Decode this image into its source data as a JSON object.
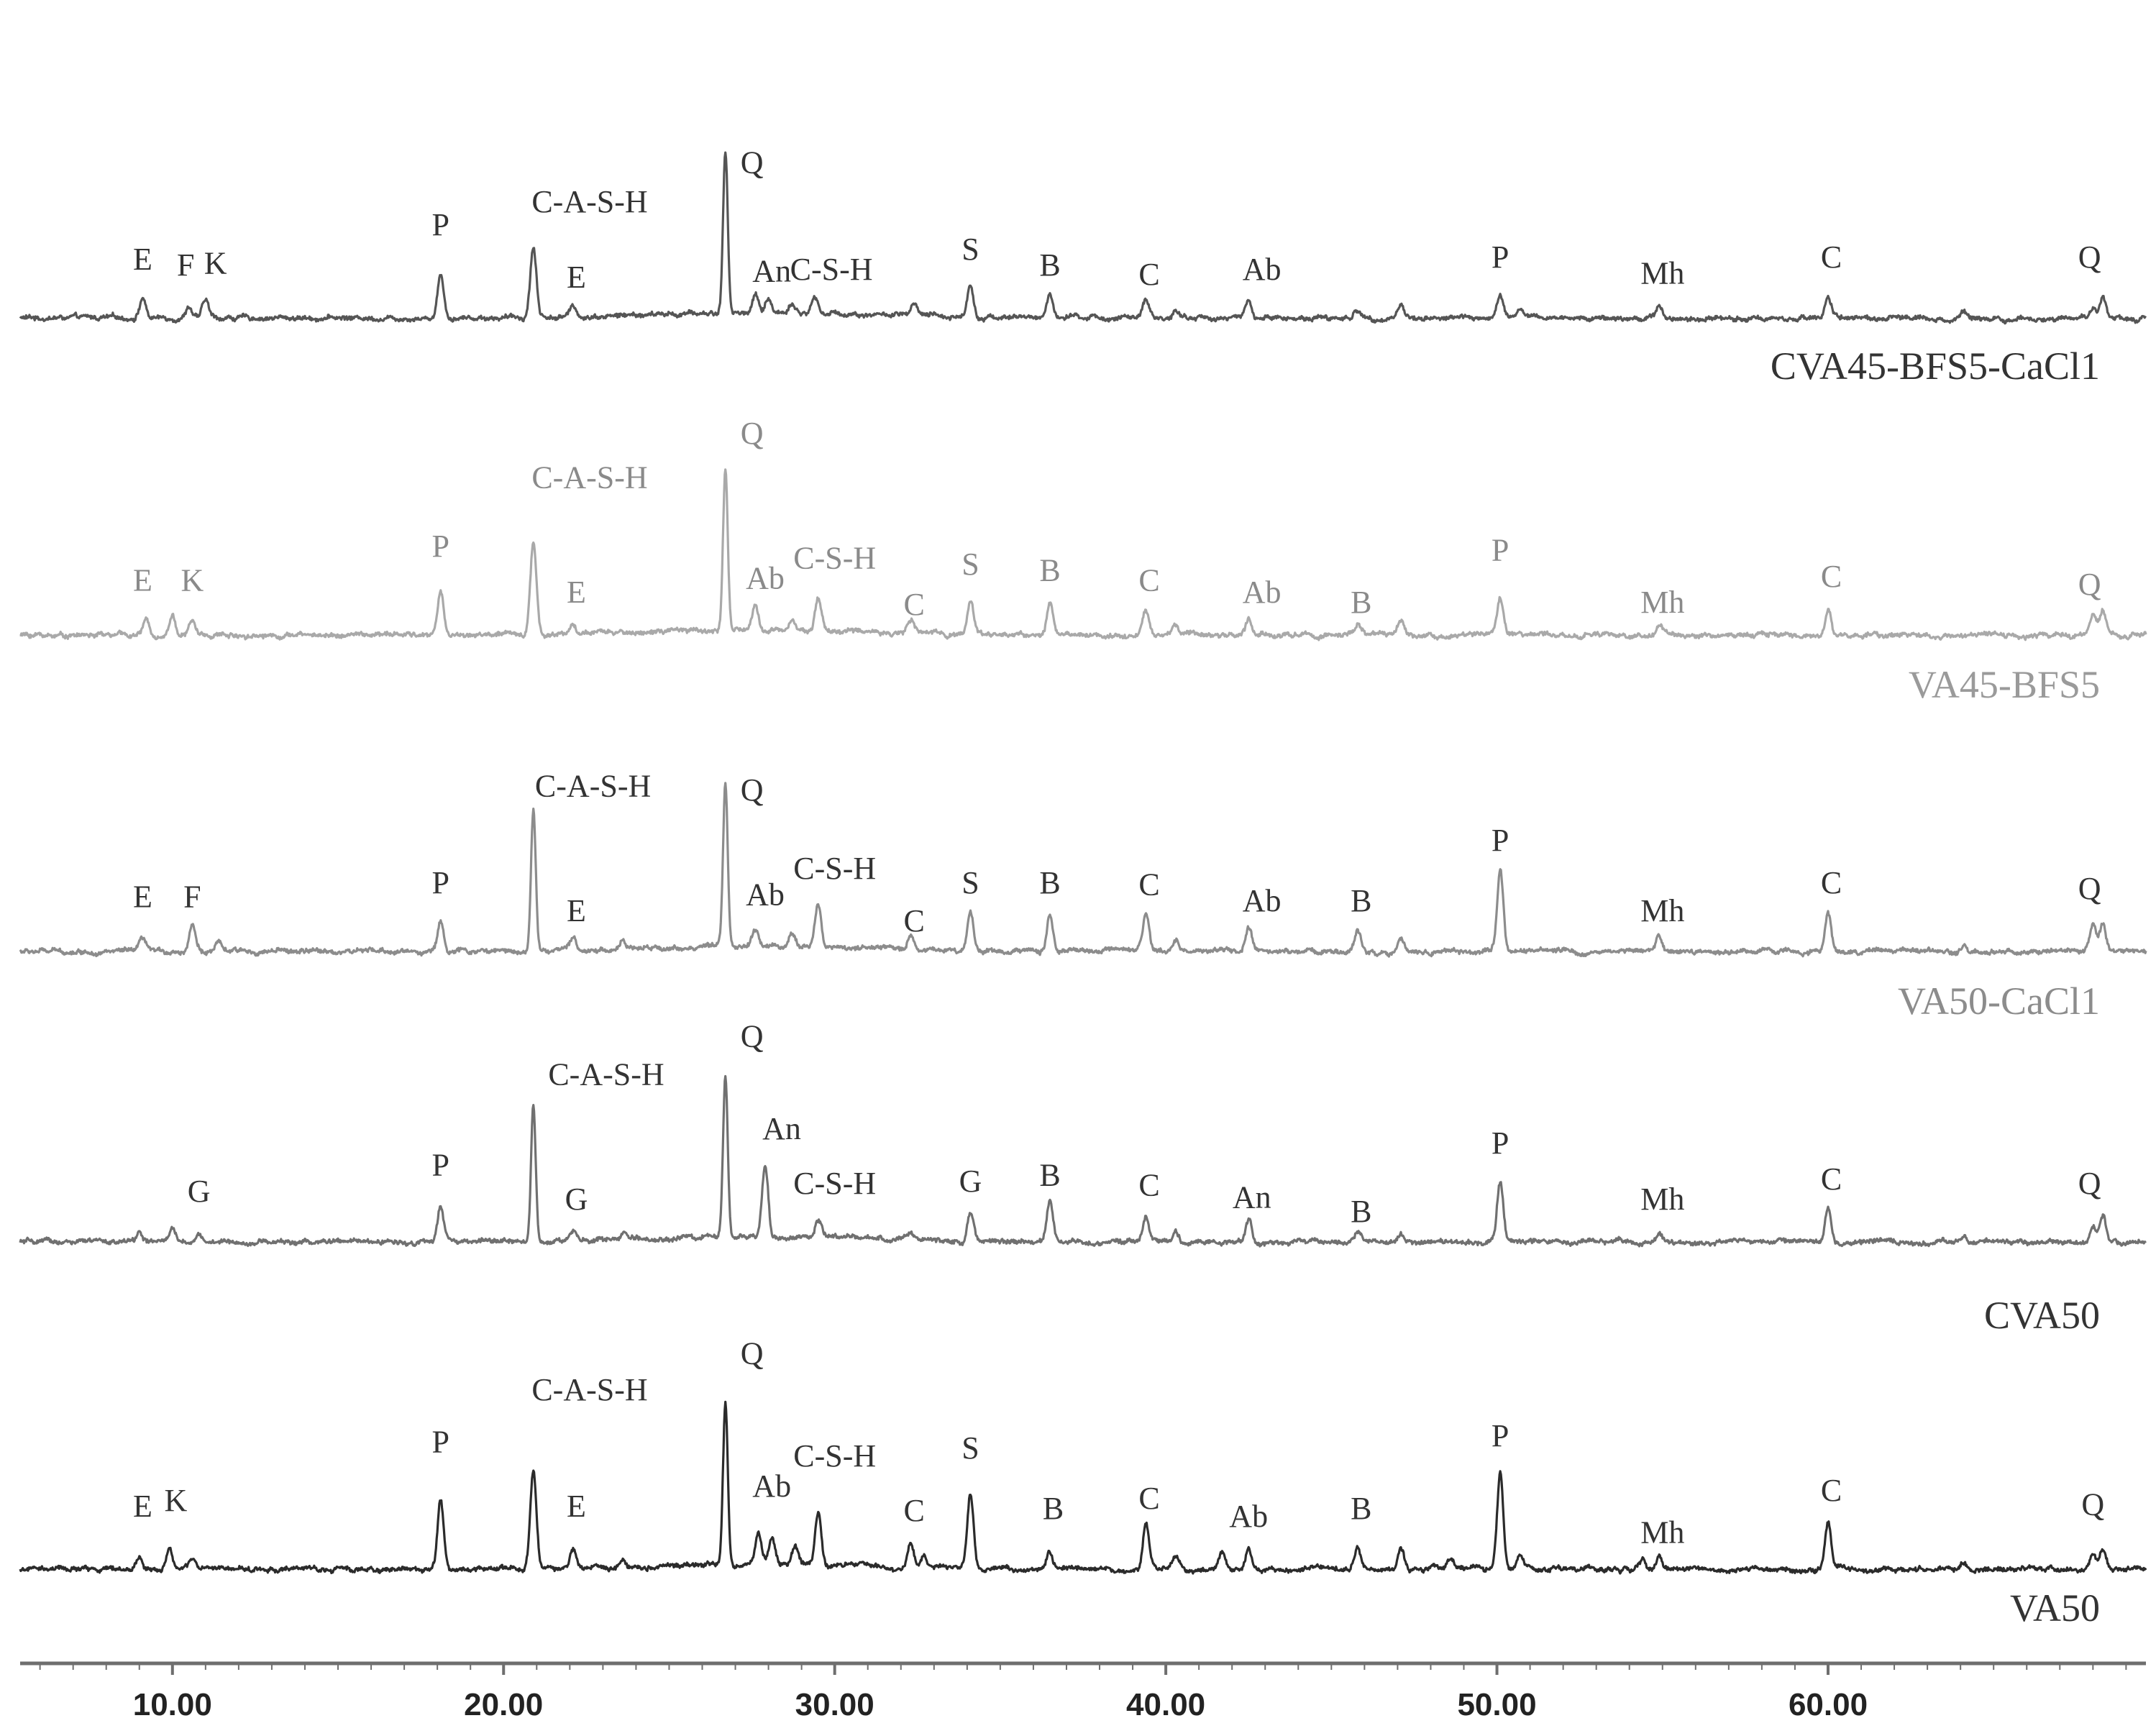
{
  "chart_data": {
    "type": "line",
    "title": "",
    "xlabel": "",
    "ylabel": "",
    "xlim": [
      5.4,
      69.6
    ],
    "xticks": [
      "10.00",
      "20.00",
      "30.00",
      "40.00",
      "50.00",
      "60.00"
    ],
    "xtick_values": [
      10,
      20,
      30,
      40,
      50,
      60
    ],
    "grid": false,
    "series": [
      {
        "name": "CVA45-BFS5-CaCl1",
        "color": "#555555",
        "peaks": [
          {
            "x": 9.1,
            "h": 0.2
          },
          {
            "x": 10.5,
            "h": 0.12
          },
          {
            "x": 11.0,
            "h": 0.18
          },
          {
            "x": 18.1,
            "h": 0.44
          },
          {
            "x": 20.9,
            "h": 0.7
          },
          {
            "x": 22.1,
            "h": 0.1
          },
          {
            "x": 26.7,
            "h": 1.6
          },
          {
            "x": 27.6,
            "h": 0.18
          },
          {
            "x": 28.0,
            "h": 0.14
          },
          {
            "x": 28.7,
            "h": 0.1
          },
          {
            "x": 29.4,
            "h": 0.16
          },
          {
            "x": 32.4,
            "h": 0.1
          },
          {
            "x": 34.1,
            "h": 0.32
          },
          {
            "x": 36.5,
            "h": 0.24
          },
          {
            "x": 39.4,
            "h": 0.16
          },
          {
            "x": 40.3,
            "h": 0.08
          },
          {
            "x": 42.5,
            "h": 0.16
          },
          {
            "x": 45.8,
            "h": 0.07
          },
          {
            "x": 47.1,
            "h": 0.12
          },
          {
            "x": 50.1,
            "h": 0.22
          },
          {
            "x": 50.7,
            "h": 0.1
          },
          {
            "x": 54.9,
            "h": 0.12
          },
          {
            "x": 60.0,
            "h": 0.18
          },
          {
            "x": 64.1,
            "h": 0.06
          },
          {
            "x": 68.0,
            "h": 0.12
          },
          {
            "x": 68.3,
            "h": 0.2
          }
        ],
        "labels": [
          {
            "text": "E",
            "x": 9.1,
            "dy": 0.48
          },
          {
            "text": "F",
            "x": 10.4,
            "dy": 0.42
          },
          {
            "text": "K",
            "x": 11.3,
            "dy": 0.44
          },
          {
            "text": "P",
            "x": 18.1,
            "dy": 0.82
          },
          {
            "text": "C-A-S-H",
            "x": 22.6,
            "dy": 1.05
          },
          {
            "text": "E",
            "x": 22.2,
            "dy": 0.3
          },
          {
            "text": "Q",
            "x": 27.5,
            "dy": 1.44
          },
          {
            "text": "An",
            "x": 28.1,
            "dy": 0.36
          },
          {
            "text": "C-S-H",
            "x": 29.9,
            "dy": 0.38
          },
          {
            "text": "S",
            "x": 34.1,
            "dy": 0.58
          },
          {
            "text": "B",
            "x": 36.5,
            "dy": 0.42
          },
          {
            "text": "C",
            "x": 39.5,
            "dy": 0.33
          },
          {
            "text": "Ab",
            "x": 42.9,
            "dy": 0.38
          },
          {
            "text": "P",
            "x": 50.1,
            "dy": 0.5
          },
          {
            "text": "Mh",
            "x": 55.0,
            "dy": 0.34
          },
          {
            "text": "C",
            "x": 60.1,
            "dy": 0.5
          },
          {
            "text": "Q",
            "x": 67.9,
            "dy": 0.5
          }
        ]
      },
      {
        "name": "VA45-BFS5",
        "color": "#a9a9a9",
        "peaks": [
          {
            "x": 9.2,
            "h": 0.14
          },
          {
            "x": 10.0,
            "h": 0.2
          },
          {
            "x": 10.6,
            "h": 0.14
          },
          {
            "x": 18.1,
            "h": 0.44
          },
          {
            "x": 20.9,
            "h": 0.92
          },
          {
            "x": 22.1,
            "h": 0.1
          },
          {
            "x": 26.7,
            "h": 1.6
          },
          {
            "x": 27.6,
            "h": 0.24
          },
          {
            "x": 28.7,
            "h": 0.14
          },
          {
            "x": 29.5,
            "h": 0.32
          },
          {
            "x": 32.3,
            "h": 0.12
          },
          {
            "x": 34.1,
            "h": 0.34
          },
          {
            "x": 36.5,
            "h": 0.3
          },
          {
            "x": 39.4,
            "h": 0.24
          },
          {
            "x": 40.3,
            "h": 0.1
          },
          {
            "x": 42.5,
            "h": 0.16
          },
          {
            "x": 45.8,
            "h": 0.1
          },
          {
            "x": 47.1,
            "h": 0.14
          },
          {
            "x": 50.1,
            "h": 0.36
          },
          {
            "x": 54.9,
            "h": 0.1
          },
          {
            "x": 60.0,
            "h": 0.28
          },
          {
            "x": 68.0,
            "h": 0.18
          },
          {
            "x": 68.3,
            "h": 0.22
          }
        ],
        "labels": [
          {
            "text": "E",
            "x": 9.1,
            "dy": 0.44
          },
          {
            "text": "K",
            "x": 10.6,
            "dy": 0.44
          },
          {
            "text": "P",
            "x": 18.1,
            "dy": 0.78
          },
          {
            "text": "C-A-S-H",
            "x": 22.6,
            "dy": 1.46
          },
          {
            "text": "E",
            "x": 22.2,
            "dy": 0.32
          },
          {
            "text": "Q",
            "x": 27.5,
            "dy": 1.9
          },
          {
            "text": "Ab",
            "x": 27.9,
            "dy": 0.46
          },
          {
            "text": "C-S-H",
            "x": 30.0,
            "dy": 0.66
          },
          {
            "text": "C",
            "x": 32.4,
            "dy": 0.2
          },
          {
            "text": "S",
            "x": 34.1,
            "dy": 0.6
          },
          {
            "text": "B",
            "x": 36.5,
            "dy": 0.54
          },
          {
            "text": "C",
            "x": 39.5,
            "dy": 0.44
          },
          {
            "text": "Ab",
            "x": 42.9,
            "dy": 0.32
          },
          {
            "text": "B",
            "x": 45.9,
            "dy": 0.22
          },
          {
            "text": "P",
            "x": 50.1,
            "dy": 0.74
          },
          {
            "text": "Mh",
            "x": 55.0,
            "dy": 0.22
          },
          {
            "text": "C",
            "x": 60.1,
            "dy": 0.48
          },
          {
            "text": "Q",
            "x": 67.9,
            "dy": 0.4
          }
        ]
      },
      {
        "name": "VA50-CaCl1",
        "color": "#8c8c8c",
        "peaks": [
          {
            "x": 9.1,
            "h": 0.12
          },
          {
            "x": 10.6,
            "h": 0.28
          },
          {
            "x": 11.4,
            "h": 0.08
          },
          {
            "x": 18.1,
            "h": 0.3
          },
          {
            "x": 20.9,
            "h": 1.4
          },
          {
            "x": 22.1,
            "h": 0.12
          },
          {
            "x": 23.6,
            "h": 0.08
          },
          {
            "x": 26.7,
            "h": 1.6
          },
          {
            "x": 27.6,
            "h": 0.16
          },
          {
            "x": 28.7,
            "h": 0.14
          },
          {
            "x": 29.5,
            "h": 0.42
          },
          {
            "x": 32.3,
            "h": 0.14
          },
          {
            "x": 34.1,
            "h": 0.38
          },
          {
            "x": 36.5,
            "h": 0.36
          },
          {
            "x": 39.4,
            "h": 0.36
          },
          {
            "x": 40.3,
            "h": 0.12
          },
          {
            "x": 42.5,
            "h": 0.22
          },
          {
            "x": 45.8,
            "h": 0.2
          },
          {
            "x": 47.1,
            "h": 0.12
          },
          {
            "x": 50.1,
            "h": 0.8
          },
          {
            "x": 54.9,
            "h": 0.14
          },
          {
            "x": 60.0,
            "h": 0.38
          },
          {
            "x": 64.1,
            "h": 0.06
          },
          {
            "x": 68.0,
            "h": 0.24
          },
          {
            "x": 68.3,
            "h": 0.28
          }
        ],
        "labels": [
          {
            "text": "E",
            "x": 9.1,
            "dy": 0.44
          },
          {
            "text": "F",
            "x": 10.6,
            "dy": 0.44
          },
          {
            "text": "P",
            "x": 18.1,
            "dy": 0.58
          },
          {
            "text": "C-A-S-H",
            "x": 22.7,
            "dy": 1.54
          },
          {
            "text": "E",
            "x": 22.2,
            "dy": 0.3
          },
          {
            "text": "Q",
            "x": 27.5,
            "dy": 1.5
          },
          {
            "text": "Ab",
            "x": 27.9,
            "dy": 0.46
          },
          {
            "text": "C-S-H",
            "x": 30.0,
            "dy": 0.72
          },
          {
            "text": "C",
            "x": 32.4,
            "dy": 0.2
          },
          {
            "text": "S",
            "x": 34.1,
            "dy": 0.58
          },
          {
            "text": "B",
            "x": 36.5,
            "dy": 0.58
          },
          {
            "text": "C",
            "x": 39.5,
            "dy": 0.56
          },
          {
            "text": "Ab",
            "x": 42.9,
            "dy": 0.4
          },
          {
            "text": "B",
            "x": 45.9,
            "dy": 0.4
          },
          {
            "text": "P",
            "x": 50.1,
            "dy": 1.0
          },
          {
            "text": "Mh",
            "x": 55.0,
            "dy": 0.3
          },
          {
            "text": "C",
            "x": 60.1,
            "dy": 0.58
          },
          {
            "text": "Q",
            "x": 67.9,
            "dy": 0.52
          }
        ]
      },
      {
        "name": "CVA50",
        "color": "#707070",
        "peaks": [
          {
            "x": 9.0,
            "h": 0.1
          },
          {
            "x": 10.0,
            "h": 0.12
          },
          {
            "x": 10.8,
            "h": 0.08
          },
          {
            "x": 18.1,
            "h": 0.34
          },
          {
            "x": 20.9,
            "h": 1.36
          },
          {
            "x": 22.1,
            "h": 0.08
          },
          {
            "x": 23.6,
            "h": 0.06
          },
          {
            "x": 26.7,
            "h": 1.6
          },
          {
            "x": 27.9,
            "h": 0.74
          },
          {
            "x": 29.5,
            "h": 0.16
          },
          {
            "x": 32.3,
            "h": 0.06
          },
          {
            "x": 34.1,
            "h": 0.28
          },
          {
            "x": 36.5,
            "h": 0.4
          },
          {
            "x": 39.4,
            "h": 0.26
          },
          {
            "x": 40.3,
            "h": 0.1
          },
          {
            "x": 42.5,
            "h": 0.22
          },
          {
            "x": 45.8,
            "h": 0.1
          },
          {
            "x": 47.1,
            "h": 0.08
          },
          {
            "x": 50.1,
            "h": 0.6
          },
          {
            "x": 54.9,
            "h": 0.1
          },
          {
            "x": 60.0,
            "h": 0.34
          },
          {
            "x": 64.1,
            "h": 0.06
          },
          {
            "x": 68.0,
            "h": 0.16
          },
          {
            "x": 68.3,
            "h": 0.26
          }
        ],
        "labels": [
          {
            "text": "G",
            "x": 10.8,
            "dy": 0.4
          },
          {
            "text": "P",
            "x": 18.1,
            "dy": 0.66
          },
          {
            "text": "C-A-S-H",
            "x": 23.1,
            "dy": 1.56
          },
          {
            "text": "G",
            "x": 22.2,
            "dy": 0.32
          },
          {
            "text": "Q",
            "x": 27.5,
            "dy": 1.94
          },
          {
            "text": "An",
            "x": 28.4,
            "dy": 1.02
          },
          {
            "text": "C-S-H",
            "x": 30.0,
            "dy": 0.48
          },
          {
            "text": "G",
            "x": 34.1,
            "dy": 0.5
          },
          {
            "text": "B",
            "x": 36.5,
            "dy": 0.56
          },
          {
            "text": "C",
            "x": 39.5,
            "dy": 0.46
          },
          {
            "text": "An",
            "x": 42.6,
            "dy": 0.34
          },
          {
            "text": "B",
            "x": 45.9,
            "dy": 0.2
          },
          {
            "text": "P",
            "x": 50.1,
            "dy": 0.88
          },
          {
            "text": "Mh",
            "x": 55.0,
            "dy": 0.32
          },
          {
            "text": "C",
            "x": 60.1,
            "dy": 0.52
          },
          {
            "text": "Q",
            "x": 67.9,
            "dy": 0.48
          }
        ]
      },
      {
        "name": "VA50",
        "color": "#2b2b2b",
        "peaks": [
          {
            "x": 9.0,
            "h": 0.12
          },
          {
            "x": 9.9,
            "h": 0.22
          },
          {
            "x": 10.6,
            "h": 0.1
          },
          {
            "x": 18.1,
            "h": 0.68
          },
          {
            "x": 20.9,
            "h": 0.96
          },
          {
            "x": 22.1,
            "h": 0.18
          },
          {
            "x": 23.6,
            "h": 0.08
          },
          {
            "x": 26.7,
            "h": 1.6
          },
          {
            "x": 27.7,
            "h": 0.3
          },
          {
            "x": 28.1,
            "h": 0.28
          },
          {
            "x": 28.8,
            "h": 0.18
          },
          {
            "x": 29.5,
            "h": 0.54
          },
          {
            "x": 32.3,
            "h": 0.26
          },
          {
            "x": 32.7,
            "h": 0.14
          },
          {
            "x": 34.1,
            "h": 0.74
          },
          {
            "x": 36.5,
            "h": 0.18
          },
          {
            "x": 39.4,
            "h": 0.44
          },
          {
            "x": 40.3,
            "h": 0.12
          },
          {
            "x": 41.7,
            "h": 0.16
          },
          {
            "x": 42.5,
            "h": 0.2
          },
          {
            "x": 45.8,
            "h": 0.24
          },
          {
            "x": 47.1,
            "h": 0.22
          },
          {
            "x": 48.6,
            "h": 0.1
          },
          {
            "x": 50.1,
            "h": 0.96
          },
          {
            "x": 50.7,
            "h": 0.14
          },
          {
            "x": 54.4,
            "h": 0.1
          },
          {
            "x": 54.9,
            "h": 0.12
          },
          {
            "x": 60.0,
            "h": 0.46
          },
          {
            "x": 64.1,
            "h": 0.06
          },
          {
            "x": 68.0,
            "h": 0.16
          },
          {
            "x": 68.3,
            "h": 0.2
          }
        ],
        "labels": [
          {
            "text": "E",
            "x": 9.1,
            "dy": 0.52
          },
          {
            "text": "K",
            "x": 10.1,
            "dy": 0.58
          },
          {
            "text": "P",
            "x": 18.1,
            "dy": 1.16
          },
          {
            "text": "C-A-S-H",
            "x": 22.6,
            "dy": 1.68
          },
          {
            "text": "E",
            "x": 22.2,
            "dy": 0.52
          },
          {
            "text": "Q",
            "x": 27.5,
            "dy": 2.04
          },
          {
            "text": "Ab",
            "x": 28.1,
            "dy": 0.72
          },
          {
            "text": "C-S-H",
            "x": 30.0,
            "dy": 1.02
          },
          {
            "text": "C",
            "x": 32.4,
            "dy": 0.48
          },
          {
            "text": "S",
            "x": 34.1,
            "dy": 1.1
          },
          {
            "text": "B",
            "x": 36.6,
            "dy": 0.5
          },
          {
            "text": "C",
            "x": 39.5,
            "dy": 0.6
          },
          {
            "text": "Ab",
            "x": 42.5,
            "dy": 0.42
          },
          {
            "text": "B",
            "x": 45.9,
            "dy": 0.5
          },
          {
            "text": "P",
            "x": 50.1,
            "dy": 1.22
          },
          {
            "text": "Mh",
            "x": 55.0,
            "dy": 0.26
          },
          {
            "text": "C",
            "x": 60.1,
            "dy": 0.68
          },
          {
            "text": "Q",
            "x": 68.0,
            "dy": 0.54
          }
        ]
      }
    ]
  }
}
